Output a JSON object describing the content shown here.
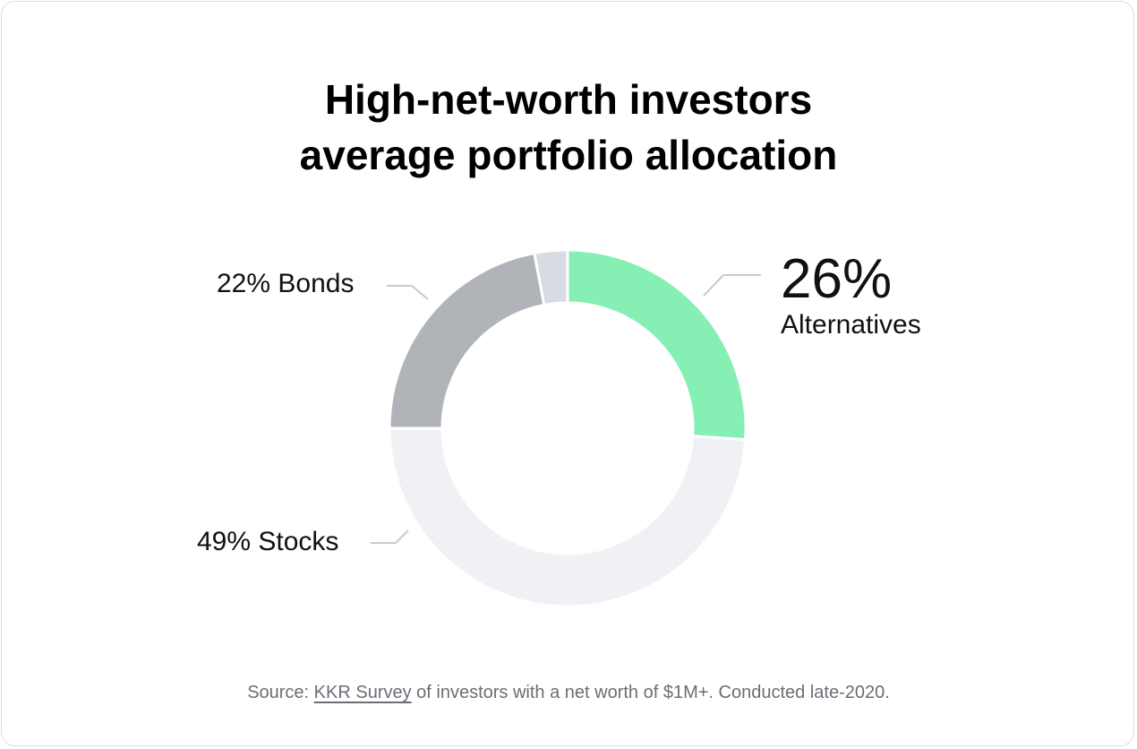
{
  "chart_data": {
    "type": "pie",
    "variant": "donut",
    "title": "High-net-worth investors average portfolio allocation",
    "title_lines": [
      "High-net-worth investors",
      "average portfolio allocation"
    ],
    "series": [
      {
        "name": "Alternatives",
        "value": 26,
        "label_pct": "26%",
        "color": "#86efb4"
      },
      {
        "name": "Stocks",
        "value": 49,
        "label": "49% Stocks",
        "color": "#f0f1f4"
      },
      {
        "name": "Bonds",
        "value": 22,
        "label": "22% Bonds",
        "color": "#b0b3b8"
      },
      {
        "name": "",
        "value": 3,
        "color": "#d8dbe2"
      }
    ]
  },
  "source": {
    "prefix": "Source: ",
    "link": "KKR Survey",
    "suffix": " of investors with a net worth of $1M+. Conducted late-2020."
  }
}
